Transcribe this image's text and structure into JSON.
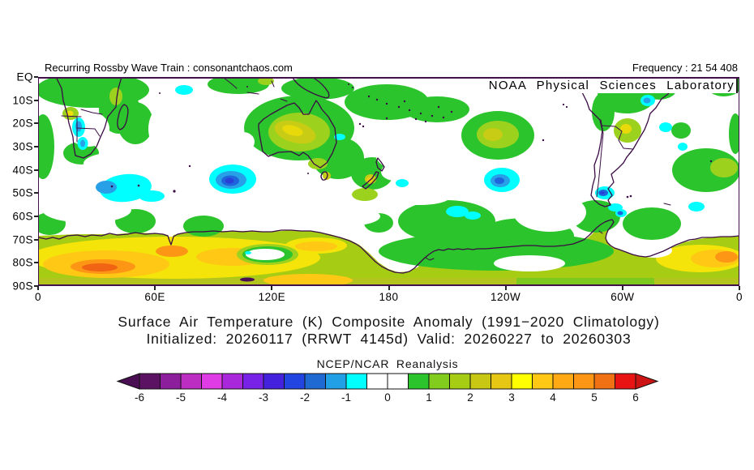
{
  "header": {
    "left": "Recurring Rossby Wave Train : consonantchaos.com",
    "right": "Frequency : 21 54 408"
  },
  "map": {
    "watermark": "NOAA Physical Sciences Laboratory",
    "lat_labels": [
      "EQ",
      "10S",
      "20S",
      "30S",
      "40S",
      "50S",
      "60S",
      "70S",
      "80S",
      "90S"
    ],
    "lon_labels": [
      "0",
      "60E",
      "120E",
      "180",
      "120W",
      "60W",
      "0"
    ]
  },
  "titles": {
    "line1": "Surface Air Temperature (K) Composite Anomaly (1991−2020 Climatology)",
    "line2": "Initialized: 20260117 (RRWT 4145d) Valid: 20260227 to 20260303"
  },
  "colorbar": {
    "label": "NCEP/NCAR Reanalysis",
    "tick_labels": [
      "-6",
      "-5",
      "-4",
      "-3",
      "-2",
      "-1",
      "0",
      "1",
      "2",
      "3",
      "4",
      "5",
      "6"
    ],
    "left_arrow_color": "#4a0e52",
    "right_arrow_color": "#cc1414",
    "segment_colors": [
      "#5c1263",
      "#8e1f9c",
      "#bc2ec2",
      "#e03ce6",
      "#aa28dc",
      "#7722e6",
      "#4422dd",
      "#2244e0",
      "#1e6ad2",
      "#22a0e6",
      "#00ffff",
      "#ffffff",
      "#ffffff",
      "#2cc42c",
      "#82cc1e",
      "#a6cc14",
      "#c8c814",
      "#e6c814",
      "#ffff00",
      "#ffc814",
      "#ffaa14",
      "#fc9614",
      "#f07014",
      "#e81414"
    ]
  },
  "chart_data": {
    "type": "heatmap",
    "subtype": "filled_contour_map",
    "title": "Surface Air Temperature (K) Composite Anomaly (1991-2020 Climatology)",
    "subtitle": "Initialized: 20260117 (RRWT 4145d) Valid: 20260227 to 20260303",
    "variable": "Surface Air Temperature",
    "units": "K",
    "climatology": "1991-2020",
    "initialized": "20260117",
    "forecast_id": "RRWT 4145d",
    "valid_period": "20260227 to 20260303",
    "data_source": "NCEP/NCAR Reanalysis",
    "frequency": "21 54 408",
    "lat_ticks": [
      "EQ",
      "10S",
      "20S",
      "30S",
      "40S",
      "50S",
      "60S",
      "70S",
      "80S",
      "90S"
    ],
    "lon_ticks": [
      "0",
      "60E",
      "120E",
      "180",
      "120W",
      "60W",
      "0"
    ],
    "contour_interval": 0.5,
    "scale_range": [
      -6,
      6
    ],
    "legend_position": "bottom",
    "anomaly_centers": [
      {
        "lon": "40E",
        "lat": "47S",
        "value": -1.5
      },
      {
        "lon": "100E",
        "lat": "45S",
        "value": -2.5
      },
      {
        "lon": "122W",
        "lat": "44S",
        "value": -2.0
      },
      {
        "lon": "70W",
        "lat": "50S",
        "value": -2.0
      },
      {
        "lon": "21E",
        "lat": "23S",
        "value": -1.5
      },
      {
        "lon": "105W",
        "lat": "11S",
        "value": -1.0
      },
      {
        "lon": "75E",
        "lat": "6S",
        "value": -1.0
      },
      {
        "lon": "130E",
        "lat": "23S",
        "value": 2.5
      },
      {
        "lon": "125W",
        "lat": "25S",
        "value": 2.0
      },
      {
        "lon": "59W",
        "lat": "23S",
        "value": 2.5
      },
      {
        "lon": "16E",
        "lat": "16S",
        "value": 2.5
      },
      {
        "lon": "140E",
        "lat": "73S",
        "value": 4.0
      },
      {
        "lon": "68E",
        "lat": "75S",
        "value": 4.5
      },
      {
        "lon": "35E",
        "lat": "82S",
        "value": 5.5
      },
      {
        "lon": "5W",
        "lat": "78S",
        "value": 4.5
      }
    ]
  }
}
